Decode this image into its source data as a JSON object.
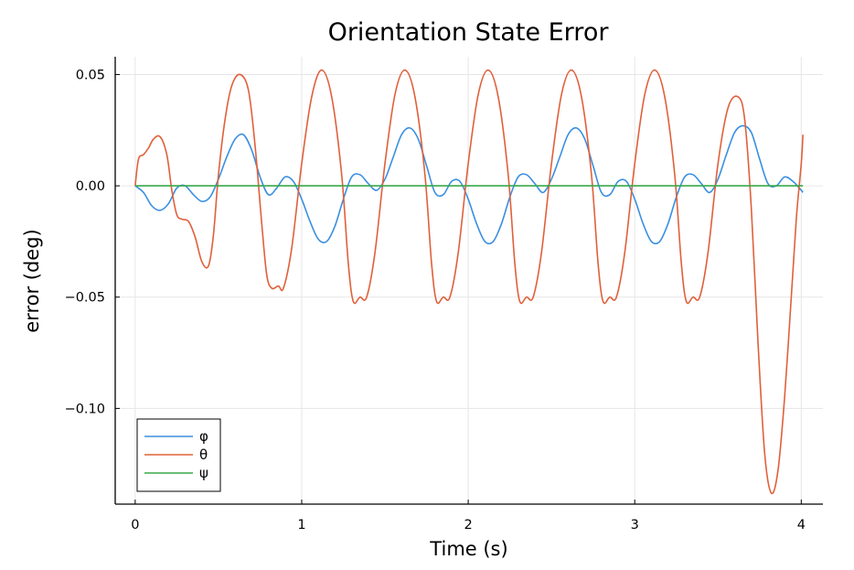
{
  "chart_data": {
    "type": "line",
    "title": "Orientation State Error",
    "xlabel": "Time (s)",
    "ylabel": "error (deg)",
    "xlim": [
      -0.12,
      4.13
    ],
    "ylim": [
      -0.143,
      0.058
    ],
    "xticks": [
      0,
      1,
      2,
      3,
      4
    ],
    "xtick_labels": [
      "0",
      "1",
      "2",
      "3",
      "4"
    ],
    "yticks": [
      0.05,
      0.0,
      -0.05,
      -0.1
    ],
    "ytick_labels": [
      "0.05",
      "0.00",
      "−0.05",
      "−0.10"
    ],
    "grid": true,
    "legend_position": "bottom-left",
    "series": [
      {
        "name": "φ",
        "color": "#3a8fe0",
        "x": [
          0,
          0.05,
          0.1,
          0.15,
          0.2,
          0.25,
          0.3,
          0.35,
          0.4,
          0.45,
          0.5,
          0.55,
          0.6,
          0.65,
          0.7,
          0.75,
          0.8,
          0.85,
          0.9,
          0.95,
          1.0,
          1.05,
          1.1,
          1.15,
          1.2,
          1.25,
          1.3,
          1.35,
          1.4,
          1.45,
          1.5,
          1.55,
          1.6,
          1.65,
          1.7,
          1.75,
          1.8,
          1.85,
          1.9,
          1.95,
          2.0,
          2.05,
          2.1,
          2.15,
          2.2,
          2.25,
          2.3,
          2.35,
          2.4,
          2.45,
          2.5,
          2.55,
          2.6,
          2.65,
          2.7,
          2.75,
          2.8,
          2.85,
          2.9,
          2.95,
          3.0,
          3.05,
          3.1,
          3.15,
          3.2,
          3.25,
          3.3,
          3.35,
          3.4,
          3.45,
          3.5,
          3.55,
          3.6,
          3.65,
          3.7,
          3.75,
          3.8,
          3.85,
          3.9,
          3.95,
          4.0,
          4.01
        ],
        "y": [
          0,
          -0.003,
          -0.009,
          -0.011,
          -0.008,
          -0.001,
          0.0,
          -0.004,
          -0.007,
          -0.005,
          0.003,
          0.013,
          0.021,
          0.023,
          0.016,
          0.004,
          -0.004,
          -0.001,
          0.004,
          0.002,
          -0.006,
          -0.016,
          -0.024,
          -0.025,
          -0.018,
          -0.006,
          0.004,
          0.005,
          0.001,
          -0.002,
          0.003,
          0.013,
          0.023,
          0.026,
          0.021,
          0.009,
          -0.003,
          -0.004,
          0.002,
          0.002,
          -0.006,
          -0.017,
          -0.025,
          -0.025,
          -0.017,
          -0.005,
          0.004,
          0.005,
          0.001,
          -0.003,
          0.003,
          0.013,
          0.023,
          0.026,
          0.021,
          0.009,
          -0.003,
          -0.004,
          0.002,
          0.002,
          -0.006,
          -0.017,
          -0.025,
          -0.025,
          -0.017,
          -0.005,
          0.004,
          0.005,
          0.001,
          -0.003,
          0.003,
          0.014,
          0.024,
          0.027,
          0.024,
          0.012,
          0.001,
          0.0,
          0.004,
          0.002,
          -0.002,
          -0.003
        ]
      },
      {
        "name": "θ",
        "color": "#e0603a",
        "x": [
          0,
          0.02,
          0.05,
          0.08,
          0.11,
          0.15,
          0.19,
          0.22,
          0.25,
          0.28,
          0.32,
          0.36,
          0.4,
          0.44,
          0.47,
          0.5,
          0.54,
          0.58,
          0.63,
          0.68,
          0.72,
          0.76,
          0.79,
          0.82,
          0.86,
          0.89,
          0.94,
          1.0,
          1.06,
          1.12,
          1.18,
          1.24,
          1.28,
          1.31,
          1.35,
          1.39,
          1.44,
          1.5,
          1.56,
          1.62,
          1.68,
          1.74,
          1.78,
          1.81,
          1.85,
          1.89,
          1.94,
          2.0,
          2.06,
          2.12,
          2.18,
          2.24,
          2.28,
          2.31,
          2.35,
          2.39,
          2.44,
          2.5,
          2.56,
          2.62,
          2.68,
          2.74,
          2.78,
          2.81,
          2.85,
          2.89,
          2.94,
          3.0,
          3.06,
          3.12,
          3.18,
          3.24,
          3.28,
          3.31,
          3.35,
          3.39,
          3.44,
          3.5,
          3.56,
          3.62,
          3.66,
          3.7,
          3.74,
          3.78,
          3.82,
          3.86,
          3.9,
          3.94,
          3.97,
          4.0,
          4.01
        ],
        "y": [
          0,
          0.012,
          0.014,
          0.017,
          0.021,
          0.022,
          0.014,
          -0.002,
          -0.013,
          -0.015,
          -0.016,
          -0.023,
          -0.034,
          -0.036,
          -0.022,
          0.005,
          0.03,
          0.045,
          0.05,
          0.043,
          0.018,
          -0.017,
          -0.04,
          -0.046,
          -0.045,
          -0.046,
          -0.028,
          0.01,
          0.04,
          0.052,
          0.04,
          0.005,
          -0.035,
          -0.052,
          -0.05,
          -0.05,
          -0.03,
          0.01,
          0.041,
          0.052,
          0.04,
          0.005,
          -0.035,
          -0.052,
          -0.05,
          -0.05,
          -0.03,
          0.01,
          0.041,
          0.052,
          0.04,
          0.005,
          -0.035,
          -0.052,
          -0.05,
          -0.05,
          -0.03,
          0.01,
          0.041,
          0.052,
          0.04,
          0.005,
          -0.035,
          -0.052,
          -0.05,
          -0.05,
          -0.03,
          0.01,
          0.041,
          0.052,
          0.04,
          0.005,
          -0.035,
          -0.052,
          -0.05,
          -0.05,
          -0.03,
          0.01,
          0.035,
          0.04,
          0.03,
          -0.01,
          -0.07,
          -0.12,
          -0.138,
          -0.128,
          -0.095,
          -0.05,
          -0.015,
          0.01,
          0.023
        ]
      },
      {
        "name": "ψ",
        "color": "#3aa84a",
        "x": [
          0,
          4.01
        ],
        "y": [
          0,
          0
        ]
      }
    ],
    "legend_entries": [
      "φ",
      "θ",
      "ψ"
    ]
  }
}
